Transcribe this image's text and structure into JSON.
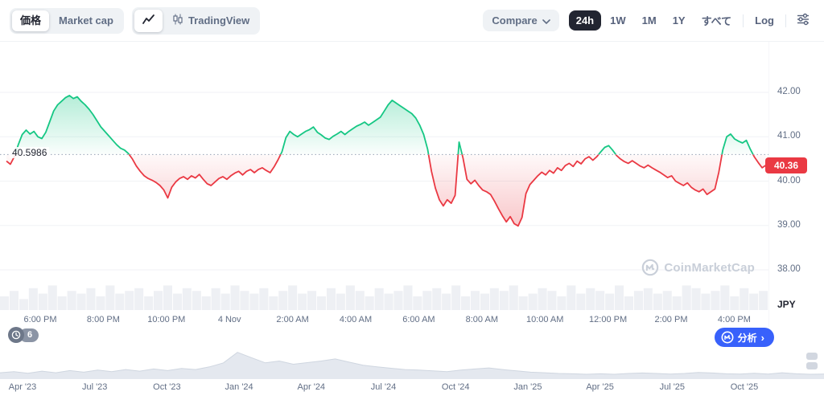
{
  "toolbar": {
    "chart_type": {
      "price_label": "価格",
      "marketcap_label": "Market cap"
    },
    "chart_style": {
      "tradingview_label": "TradingView"
    },
    "compare_label": "Compare",
    "ranges": [
      "24h",
      "1W",
      "1M",
      "1Y",
      "すべて",
      "Log"
    ],
    "active_range": "24h"
  },
  "chart_overlay": {
    "baseline_label": "40.5986",
    "last_price_label": "40.36",
    "currency_label": "JPY",
    "watermark": "CoinMarketCap"
  },
  "footer": {
    "history_count": "6",
    "analysis_label": "分析",
    "analysis_chevron": "›"
  },
  "colors": {
    "green": "#16c784",
    "red": "#ea3943",
    "blue": "#3861fb",
    "gray_text": "#616e85",
    "dark": "#222531",
    "chip_bg": "#eff2f5",
    "grid": "#f0f2f5",
    "baseline": "#97a2b5",
    "volume": "#eef0f4",
    "nav_fill": "#e4e8ef",
    "nav_stroke": "#cfd6e0",
    "thumb": "#d2d7e0"
  },
  "chart_data": [
    {
      "type": "line",
      "name": "price-24h",
      "title": "24h price (JPY)",
      "baseline": 40.5986,
      "last_price": 40.36,
      "ylim": [
        37.0,
        43.07
      ],
      "y_ticks": [
        42,
        41,
        40,
        39,
        38
      ],
      "y_tick_labels": [
        "42.00",
        "41.00",
        "40.00",
        "39.00",
        "38.00"
      ],
      "x_tick_labels": [
        "6:00 PM",
        "8:00 PM",
        "10:00 PM",
        "4 Nov",
        "2:00 AM",
        "4:00 AM",
        "6:00 AM",
        "8:00 AM",
        "10:00 AM",
        "12:00 PM",
        "2:00 PM",
        "4:00 PM"
      ],
      "legend": "off",
      "grid": "horizontal",
      "values": [
        40.45,
        40.38,
        40.55,
        40.82,
        41.05,
        41.15,
        41.06,
        41.12,
        41.0,
        40.96,
        41.1,
        41.34,
        41.58,
        41.72,
        41.8,
        41.88,
        41.93,
        41.86,
        41.9,
        41.8,
        41.72,
        41.62,
        41.5,
        41.36,
        41.22,
        41.12,
        41.02,
        40.92,
        40.82,
        40.74,
        40.7,
        40.62,
        40.5,
        40.34,
        40.22,
        40.12,
        40.06,
        40.02,
        39.97,
        39.9,
        39.8,
        39.62,
        39.86,
        39.98,
        40.06,
        40.1,
        40.04,
        40.12,
        40.07,
        40.15,
        40.04,
        39.94,
        39.9,
        39.98,
        40.06,
        40.1,
        40.04,
        40.12,
        40.18,
        40.22,
        40.14,
        40.22,
        40.26,
        40.19,
        40.26,
        40.3,
        40.24,
        40.19,
        40.32,
        40.48,
        40.66,
        40.98,
        41.12,
        41.05,
        41.0,
        41.06,
        41.12,
        41.16,
        41.22,
        41.1,
        41.04,
        40.97,
        40.94,
        41.01,
        41.06,
        41.12,
        41.05,
        41.12,
        41.18,
        41.24,
        41.28,
        41.33,
        41.26,
        41.32,
        41.38,
        41.44,
        41.58,
        41.72,
        41.82,
        41.76,
        41.7,
        41.64,
        41.58,
        41.52,
        41.42,
        41.26,
        41.05,
        40.72,
        40.22,
        39.84,
        39.58,
        39.44,
        39.58,
        39.5,
        39.68,
        40.88,
        40.52,
        40.04,
        39.94,
        40.02,
        39.9,
        39.8,
        39.76,
        39.7,
        39.55,
        39.38,
        39.22,
        39.08,
        39.2,
        39.04,
        38.99,
        39.18,
        39.72,
        39.92,
        40.02,
        40.12,
        40.2,
        40.14,
        40.24,
        40.18,
        40.3,
        40.24,
        40.35,
        40.4,
        40.33,
        40.45,
        40.39,
        40.5,
        40.55,
        40.47,
        40.55,
        40.66,
        40.76,
        40.8,
        40.7,
        40.58,
        40.5,
        40.44,
        40.4,
        40.46,
        40.4,
        40.34,
        40.3,
        40.36,
        40.3,
        40.25,
        40.2,
        40.14,
        40.08,
        40.12,
        40.0,
        39.95,
        39.9,
        39.96,
        39.86,
        39.8,
        39.76,
        39.82,
        39.7,
        39.76,
        39.82,
        40.2,
        40.7,
        41.0,
        41.06,
        40.95,
        40.9,
        40.86,
        40.92,
        40.72,
        40.55,
        40.42,
        40.3,
        40.36
      ],
      "volume": [
        0.5,
        0.7,
        0.4,
        0.8,
        0.6,
        0.9,
        0.5,
        0.7,
        0.6,
        0.8,
        0.5,
        0.9,
        0.6,
        0.7,
        0.8,
        0.5,
        0.7,
        0.9,
        0.6,
        0.8,
        0.7,
        0.5,
        0.8,
        0.6,
        0.9,
        0.7,
        0.6,
        0.8,
        0.5,
        0.7,
        0.9,
        0.6,
        0.7,
        0.5,
        0.8,
        0.6,
        0.9,
        0.7,
        0.5,
        0.8,
        0.6,
        0.7,
        0.9,
        0.5,
        0.7,
        0.8,
        0.6,
        0.9,
        0.5,
        0.7,
        0.6,
        0.8,
        0.7,
        0.9,
        0.5,
        0.6,
        0.8,
        0.7,
        0.5,
        0.9,
        0.6,
        0.8,
        0.7,
        0.6,
        0.9,
        0.5,
        0.7,
        0.8,
        0.6,
        0.7,
        0.5,
        0.9,
        0.8,
        0.6,
        0.7,
        0.9,
        0.5,
        0.8,
        0.6,
        0.7
      ]
    },
    {
      "type": "area",
      "name": "history-navigator",
      "title": "All-time range navigator",
      "x_tick_labels": [
        "Apr '23",
        "Jul '23",
        "Oct '23",
        "Jan '24",
        "Apr '24",
        "Jul '24",
        "Oct '24",
        "Jan '25",
        "Apr '25",
        "Jul '25",
        "Oct '25"
      ],
      "values": [
        0.18,
        0.22,
        0.16,
        0.24,
        0.18,
        0.26,
        0.2,
        0.28,
        0.22,
        0.3,
        0.24,
        0.32,
        0.26,
        0.34,
        0.3,
        0.4,
        0.55,
        0.95,
        0.75,
        0.55,
        0.62,
        0.5,
        0.56,
        0.62,
        0.7,
        0.58,
        0.46,
        0.4,
        0.35,
        0.3,
        0.28,
        0.25,
        0.22,
        0.28,
        0.32,
        0.36,
        0.3,
        0.25,
        0.2,
        0.18,
        0.15,
        0.14,
        0.12,
        0.14,
        0.12,
        0.15,
        0.17,
        0.15,
        0.13,
        0.15,
        0.19,
        0.17,
        0.14,
        0.13,
        0.16,
        0.13,
        0.18,
        0.14,
        0.12,
        0.13
      ]
    }
  ]
}
